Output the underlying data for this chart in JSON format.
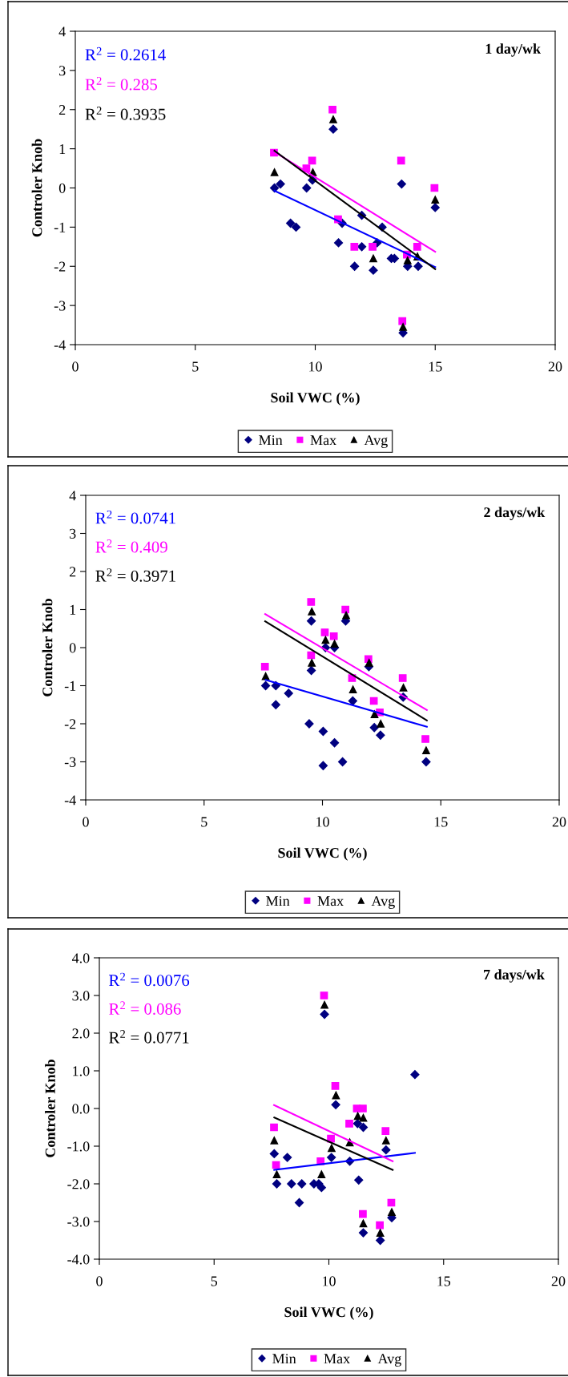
{
  "chart_data": [
    {
      "type": "scatter",
      "title": "1 day/wk",
      "xlabel": "Soil VWC (%)",
      "ylabel": "Controler Knob",
      "xlim": [
        0,
        20
      ],
      "xticks": [
        0,
        5,
        10,
        15,
        20
      ],
      "ylim": [
        -4,
        4
      ],
      "yticks": [
        -4,
        -3,
        -2,
        -1,
        0,
        1,
        2,
        3,
        4
      ],
      "legend": "bottom",
      "annotations": [
        "R$^{2}$ = 0.2614",
        "R$^{2}$ = 0.285",
        "R$^{2}$ = 0.3935"
      ],
      "series": [
        {
          "name": "Min",
          "color": "#000080",
          "marker": "diamond",
          "x": [
            8.3,
            8.55,
            8.97,
            9.2,
            9.64,
            9.88,
            10.75,
            10.97,
            11.12,
            11.64,
            11.94,
            11.94,
            12.42,
            12.58,
            12.79,
            13.17,
            13.3,
            13.6,
            13.66,
            13.85,
            14.29,
            15.0
          ],
          "values": [
            0.0,
            0.1,
            -0.9,
            -1.0,
            0.0,
            0.2,
            1.5,
            -1.4,
            -0.9,
            -2.0,
            -0.7,
            -1.5,
            -2.1,
            -1.4,
            -1.0,
            -1.8,
            -1.8,
            0.1,
            -3.7,
            -2.0,
            -2.0,
            -0.5
          ]
        },
        {
          "name": "Max",
          "color": "#ff00ff",
          "marker": "square",
          "x": [
            8.28,
            9.63,
            9.87,
            10.72,
            10.95,
            11.63,
            12.39,
            13.58,
            13.63,
            13.82,
            14.25,
            14.97
          ],
          "values": [
            0.9,
            0.5,
            0.7,
            2.0,
            -0.8,
            -1.5,
            -1.5,
            0.7,
            -3.4,
            -1.7,
            -1.5,
            0.0
          ]
        },
        {
          "name": "Avg",
          "color": "#000000",
          "marker": "triangle",
          "x": [
            8.3,
            9.9,
            10.75,
            12.42,
            13.66,
            13.85,
            14.26,
            15.0
          ],
          "values": [
            0.4,
            0.4,
            1.75,
            -1.8,
            -3.55,
            -1.85,
            -1.75,
            -0.3
          ]
        },
        {
          "type": "line",
          "color": "#0000ff",
          "x": [
            8.3,
            15.0
          ],
          "values": [
            -0.07,
            -2.02
          ]
        },
        {
          "type": "line",
          "color": "#ff00ff",
          "x": [
            8.28,
            15.0
          ],
          "values": [
            0.93,
            -1.63
          ]
        },
        {
          "type": "line",
          "color": "#000000",
          "x": [
            8.3,
            15.0
          ],
          "values": [
            0.95,
            -2.07
          ]
        }
      ]
    },
    {
      "type": "scatter",
      "title": "2 days/wk",
      "xlabel": "Soil VWC (%)",
      "ylabel": "Controler Knob",
      "xlim": [
        0,
        20
      ],
      "xticks": [
        0,
        5,
        10,
        15,
        20
      ],
      "ylim": [
        -4,
        4
      ],
      "yticks": [
        -4,
        -3,
        -2,
        -1,
        0,
        1,
        2,
        3,
        4
      ],
      "legend": "bottom",
      "annotations": [
        "R$^{2}$ = 0.0741",
        "R$^{2}$ = 0.409",
        "R$^{2}$ = 0.3971"
      ],
      "series": [
        {
          "name": "Min",
          "color": "#000080",
          "marker": "diamond",
          "x": [
            7.6,
            8.03,
            8.03,
            8.57,
            9.44,
            9.53,
            9.53,
            10.03,
            10.03,
            10.13,
            10.51,
            10.51,
            10.85,
            10.98,
            11.28,
            11.96,
            12.19,
            12.45,
            13.41,
            14.38
          ],
          "values": [
            -1.0,
            -1.0,
            -1.5,
            -1.2,
            -2.0,
            0.7,
            -0.6,
            -2.2,
            -3.1,
            0.0,
            -2.5,
            0.0,
            -3.0,
            0.7,
            -1.4,
            -0.5,
            -2.1,
            -2.3,
            -1.3,
            -3.0
          ]
        },
        {
          "name": "Max",
          "color": "#ff00ff",
          "marker": "square",
          "x": [
            7.57,
            9.52,
            9.52,
            10.1,
            10.48,
            10.97,
            11.25,
            11.94,
            12.17,
            12.42,
            13.39,
            14.35
          ],
          "values": [
            -0.5,
            1.2,
            -0.2,
            0.4,
            0.3,
            1.0,
            -0.8,
            -0.3,
            -1.4,
            -1.7,
            -0.8,
            -2.4
          ]
        },
        {
          "name": "Avg",
          "color": "#000000",
          "marker": "triangle",
          "x": [
            7.6,
            9.55,
            9.55,
            10.13,
            10.51,
            11.0,
            11.29,
            11.97,
            12.2,
            12.46,
            13.42,
            14.38
          ],
          "values": [
            -0.75,
            0.95,
            -0.4,
            0.2,
            0.1,
            0.85,
            -1.1,
            -0.4,
            -1.75,
            -2.0,
            -1.05,
            -2.7
          ]
        },
        {
          "type": "line",
          "color": "#0000ff",
          "x": [
            7.6,
            14.41
          ],
          "values": [
            -0.85,
            -2.08
          ]
        },
        {
          "type": "line",
          "color": "#ff00ff",
          "x": [
            7.58,
            14.41
          ],
          "values": [
            0.88,
            -1.64
          ]
        },
        {
          "type": "line",
          "color": "#000000",
          "x": [
            7.58,
            14.41
          ],
          "values": [
            0.69,
            -1.91
          ]
        }
      ]
    },
    {
      "type": "scatter",
      "title": "7 days/wk",
      "xlabel": "Soil VWC (%)",
      "ylabel": "Controler Knob",
      "xlim": [
        0,
        20
      ],
      "xticks": [
        0,
        5,
        10,
        15,
        20
      ],
      "ylim": [
        -4,
        4
      ],
      "yticks": [
        {
          "value": -4,
          "label": "-4.0"
        },
        {
          "value": -3,
          "label": "-3.0"
        },
        {
          "value": -2,
          "label": "-2.0"
        },
        {
          "value": -1,
          "label": "-1.0"
        },
        {
          "value": 0,
          "label": "0.0"
        },
        {
          "value": 1,
          "label": "1.0"
        },
        {
          "value": 2,
          "label": "2.0"
        },
        {
          "value": 3,
          "label": "3.0"
        },
        {
          "value": 4,
          "label": "4.0"
        }
      ],
      "legend": "bottom",
      "annotations": [
        "R$^{2}$ = 0.0076",
        "R$^{2}$ = 0.086",
        "R$^{2}$ = 0.0771"
      ],
      "series": [
        {
          "name": "Min",
          "color": "#000080",
          "marker": "diamond",
          "x": [
            7.62,
            7.73,
            8.19,
            8.37,
            8.71,
            8.82,
            9.35,
            9.56,
            9.68,
            9.81,
            10.11,
            10.3,
            10.91,
            11.25,
            11.3,
            11.5,
            11.5,
            12.24,
            12.49,
            12.74,
            13.75
          ],
          "values": [
            -1.2,
            -2.0,
            -1.3,
            -2.0,
            -2.5,
            -2.0,
            -2.0,
            -2.0,
            -2.1,
            2.5,
            -1.3,
            0.1,
            -1.4,
            -0.4,
            -1.9,
            -0.5,
            -3.3,
            -3.5,
            -1.1,
            -2.9,
            0.9
          ]
        },
        {
          "name": "Max",
          "color": "#ff00ff",
          "marker": "square",
          "x": [
            7.61,
            7.7,
            9.64,
            9.79,
            10.09,
            10.28,
            10.89,
            11.22,
            11.48,
            11.48,
            12.22,
            12.47,
            12.72
          ],
          "values": [
            -0.5,
            -1.5,
            -1.4,
            3.0,
            -0.8,
            0.6,
            -0.4,
            0.0,
            0.0,
            -2.8,
            -3.1,
            -0.6,
            -2.5
          ]
        },
        {
          "name": "Avg",
          "color": "#000000",
          "marker": "triangle",
          "x": [
            7.62,
            7.73,
            9.68,
            9.81,
            10.12,
            10.31,
            10.91,
            11.26,
            11.5,
            11.5,
            12.24,
            12.49,
            12.74
          ],
          "values": [
            -0.85,
            -1.75,
            -1.75,
            2.75,
            -1.05,
            0.35,
            -0.9,
            -0.2,
            -0.25,
            -3.05,
            -3.3,
            -0.85,
            -2.75
          ]
        },
        {
          "type": "line",
          "color": "#0000ff",
          "x": [
            7.62,
            13.75
          ],
          "values": [
            -1.63,
            -1.18
          ]
        },
        {
          "type": "line",
          "color": "#ff00ff",
          "x": [
            7.61,
            12.78
          ],
          "values": [
            0.09,
            -1.4
          ]
        },
        {
          "type": "line",
          "color": "#000000",
          "x": [
            7.62,
            12.78
          ],
          "values": [
            -0.24,
            -1.63
          ]
        }
      ]
    }
  ]
}
